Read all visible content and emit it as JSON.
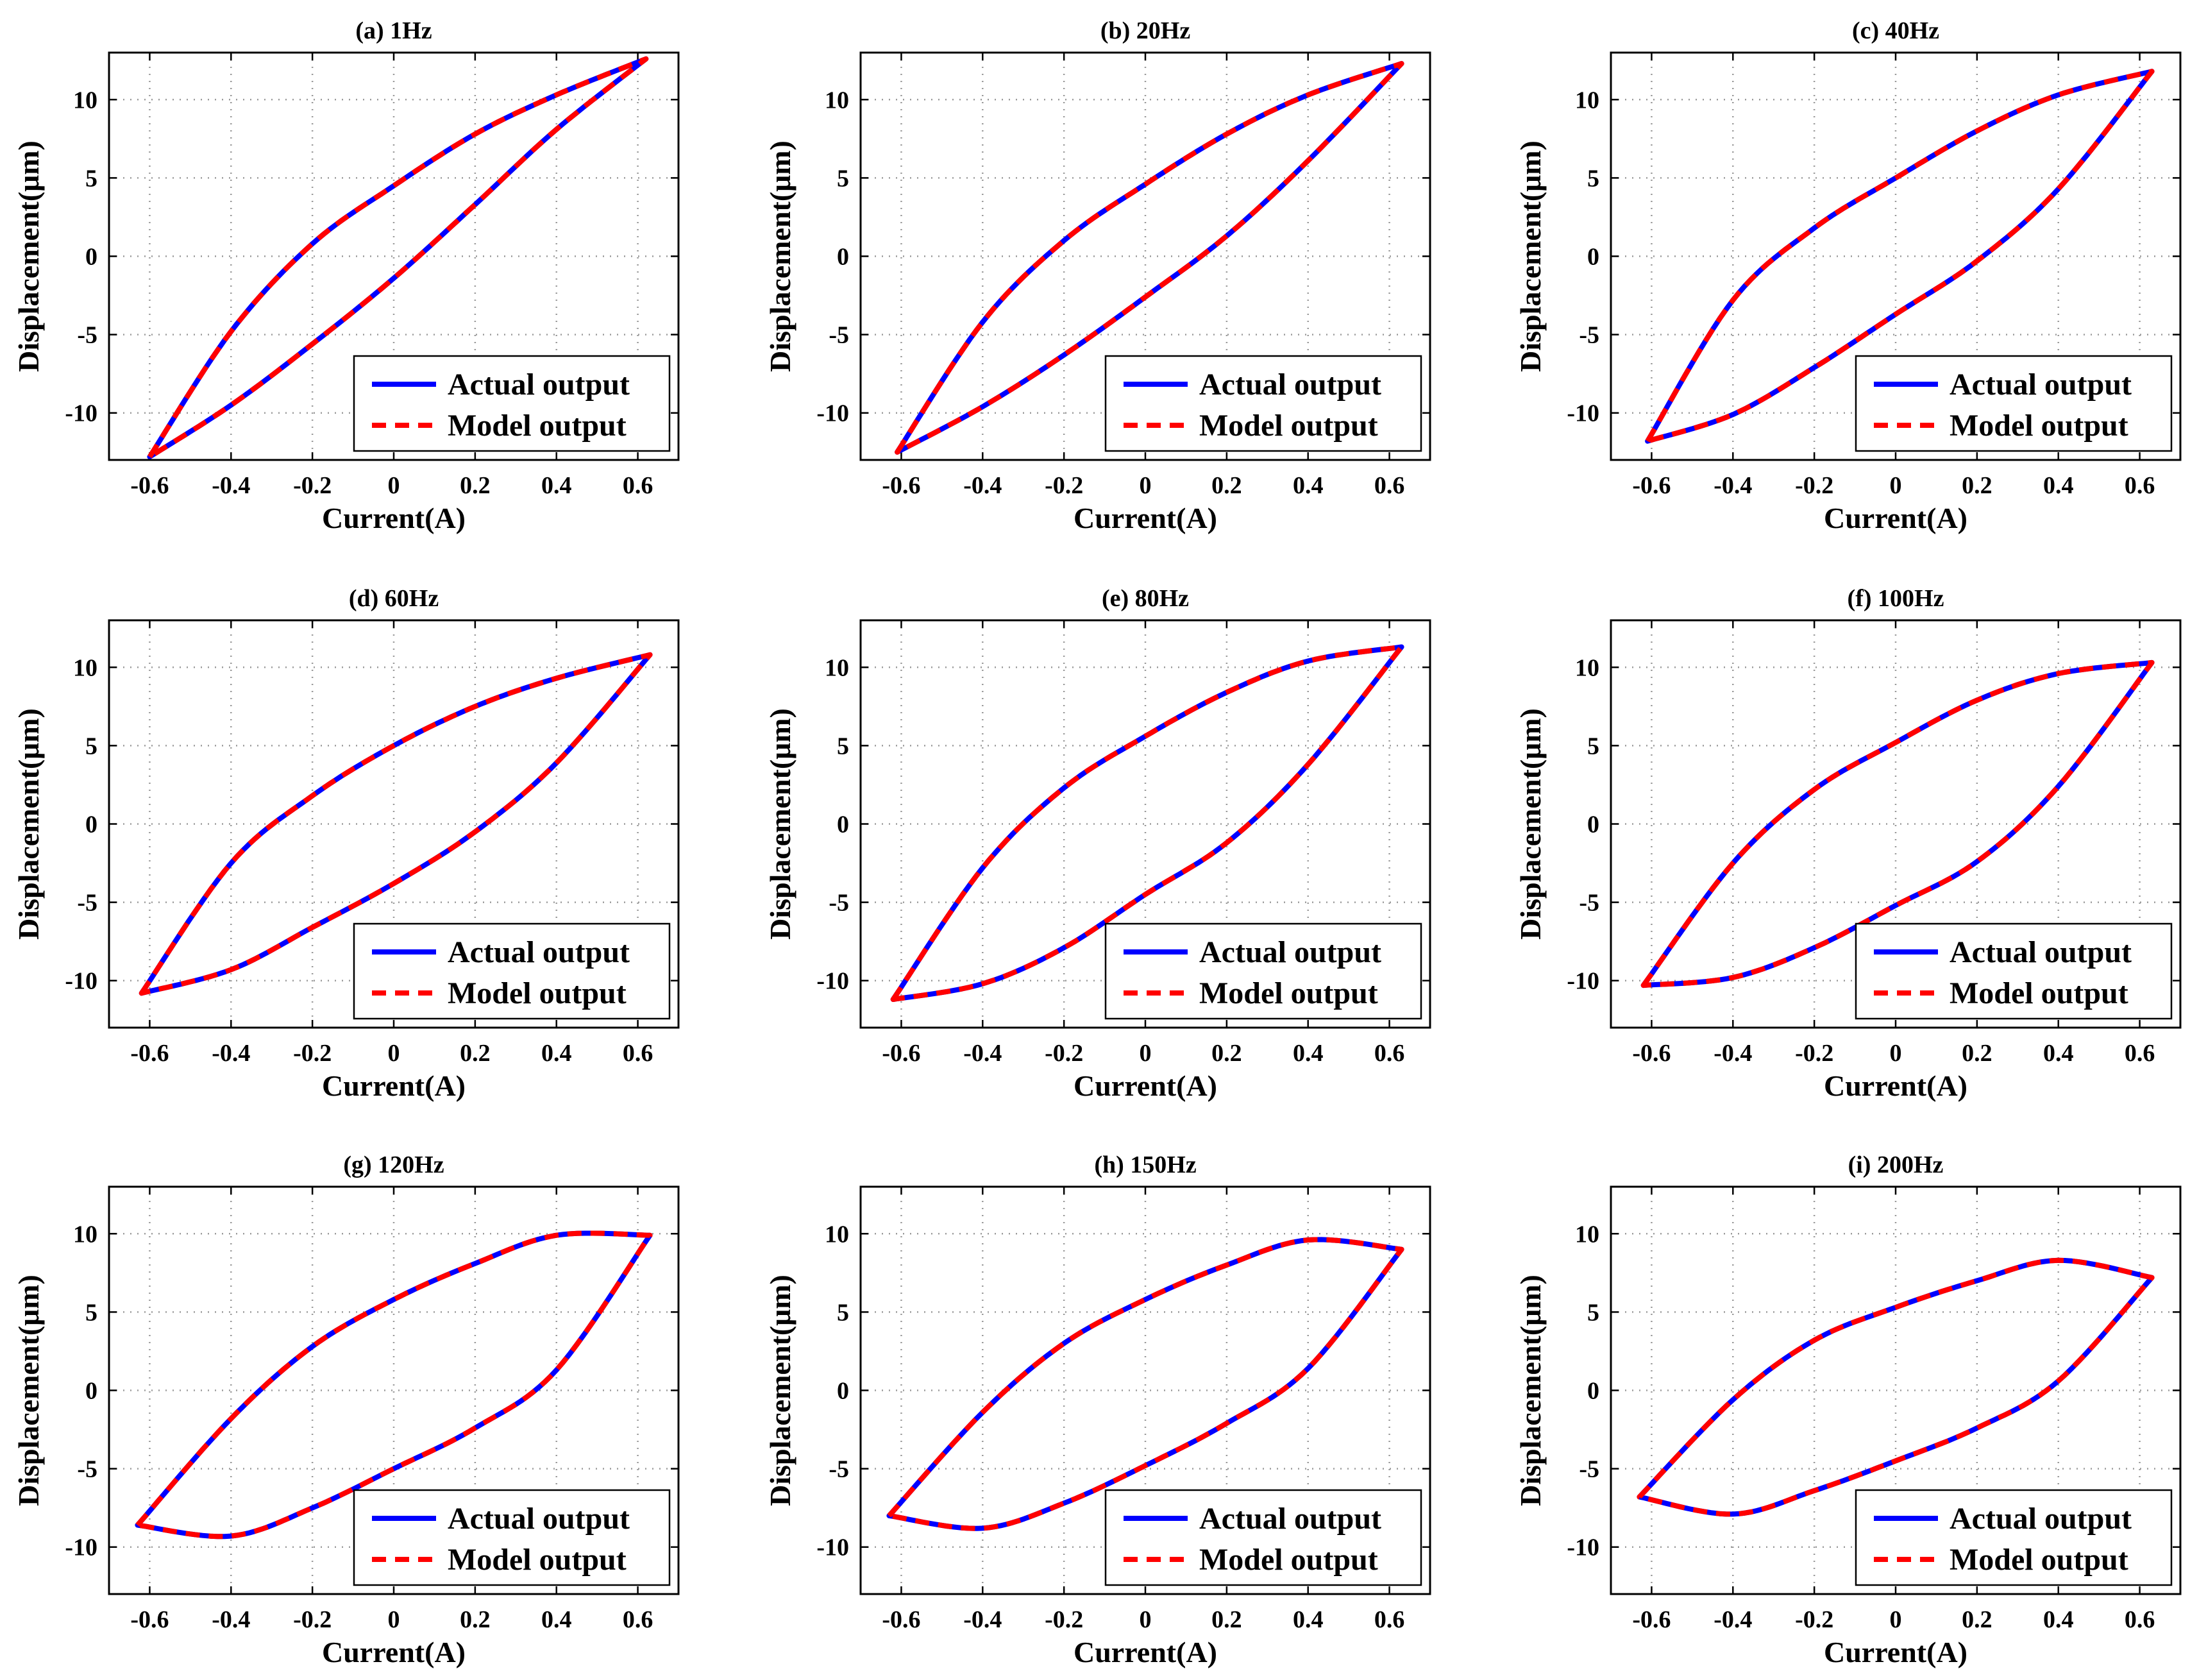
{
  "chart_data": [
    {
      "type": "line",
      "panel": "a",
      "title": "(a) 1Hz",
      "xlabel": "Current(A)",
      "ylabel": "Displacement(μm)",
      "xlim": [
        -0.7,
        0.7
      ],
      "ylim": [
        -13,
        13
      ],
      "xticks": [
        -0.6,
        -0.4,
        -0.2,
        0,
        0.2,
        0.4,
        0.6
      ],
      "xtick_labels": [
        "-0.6",
        "-0.4",
        "-0.2",
        "0",
        "0.2",
        "0.4",
        "0.6"
      ],
      "yticks": [
        -10,
        -5,
        0,
        5,
        10
      ],
      "ytick_labels": [
        "-10",
        "-5",
        "0",
        "5",
        "10"
      ],
      "grid": true,
      "legend_position": "bottom-right",
      "series": [
        {
          "name": "Actual output",
          "color": "#0000ff",
          "style": "solid"
        },
        {
          "name": "Model output",
          "color": "#ff0000",
          "style": "dashed"
        }
      ],
      "loop": {
        "x_min": -0.6,
        "y_at_xmin": -12.8,
        "x_max": 0.62,
        "y_at_xmax": 12.6,
        "upper_branch": [
          [
            -0.6,
            -12.8
          ],
          [
            -0.4,
            -4.8
          ],
          [
            -0.2,
            0.8
          ],
          [
            0,
            4.5
          ],
          [
            0.2,
            7.8
          ],
          [
            0.4,
            10.3
          ],
          [
            0.62,
            12.6
          ]
        ],
        "lower_branch": [
          [
            0.62,
            12.6
          ],
          [
            0.4,
            8.1
          ],
          [
            0.2,
            3.3
          ],
          [
            0,
            -1.4
          ],
          [
            -0.2,
            -5.6
          ],
          [
            -0.4,
            -9.5
          ],
          [
            -0.6,
            -12.8
          ]
        ]
      }
    },
    {
      "type": "line",
      "panel": "b",
      "title": "(b) 20Hz",
      "xlabel": "Current(A)",
      "ylabel": "Displacement(μm)",
      "xlim": [
        -0.7,
        0.7
      ],
      "ylim": [
        -13,
        13
      ],
      "xticks": [
        -0.6,
        -0.4,
        -0.2,
        0,
        0.2,
        0.4,
        0.6
      ],
      "xtick_labels": [
        "-0.6",
        "-0.4",
        "-0.2",
        "0",
        "0.2",
        "0.4",
        "0.6"
      ],
      "yticks": [
        -10,
        -5,
        0,
        5,
        10
      ],
      "ytick_labels": [
        "-10",
        "-5",
        "0",
        "5",
        "10"
      ],
      "grid": true,
      "legend_position": "bottom-right",
      "series": [
        {
          "name": "Actual output",
          "color": "#0000ff",
          "style": "solid"
        },
        {
          "name": "Model output",
          "color": "#ff0000",
          "style": "dashed"
        }
      ],
      "loop": {
        "x_min": -0.61,
        "y_at_xmin": -12.5,
        "x_max": 0.63,
        "y_at_xmax": 12.3,
        "upper_branch": [
          [
            -0.61,
            -12.5
          ],
          [
            -0.4,
            -4.2
          ],
          [
            -0.2,
            1.0
          ],
          [
            0,
            4.6
          ],
          [
            0.2,
            7.8
          ],
          [
            0.4,
            10.3
          ],
          [
            0.63,
            12.3
          ]
        ],
        "lower_branch": [
          [
            0.63,
            12.3
          ],
          [
            0.4,
            6.1
          ],
          [
            0.2,
            1.3
          ],
          [
            0,
            -2.6
          ],
          [
            -0.2,
            -6.3
          ],
          [
            -0.4,
            -9.6
          ],
          [
            -0.61,
            -12.5
          ]
        ]
      }
    },
    {
      "type": "line",
      "panel": "c",
      "title": "(c) 40Hz",
      "xlabel": "Current(A)",
      "ylabel": "Displacement(μm)",
      "xlim": [
        -0.7,
        0.7
      ],
      "ylim": [
        -13,
        13
      ],
      "xticks": [
        -0.6,
        -0.4,
        -0.2,
        0,
        0.2,
        0.4,
        0.6
      ],
      "xtick_labels": [
        "-0.6",
        "-0.4",
        "-0.2",
        "0",
        "0.2",
        "0.4",
        "0.6"
      ],
      "yticks": [
        -10,
        -5,
        0,
        5,
        10
      ],
      "ytick_labels": [
        "-10",
        "-5",
        "0",
        "5",
        "10"
      ],
      "grid": true,
      "legend_position": "bottom-right",
      "series": [
        {
          "name": "Actual output",
          "color": "#0000ff",
          "style": "solid"
        },
        {
          "name": "Model output",
          "color": "#ff0000",
          "style": "dashed"
        }
      ],
      "loop": {
        "x_min": -0.61,
        "y_at_xmin": -11.8,
        "x_max": 0.63,
        "y_at_xmax": 11.8,
        "upper_branch": [
          [
            -0.61,
            -11.8
          ],
          [
            -0.4,
            -2.8
          ],
          [
            -0.2,
            1.8
          ],
          [
            0,
            5.0
          ],
          [
            0.2,
            8.0
          ],
          [
            0.4,
            10.3
          ],
          [
            0.63,
            11.8
          ]
        ],
        "lower_branch": [
          [
            0.63,
            11.8
          ],
          [
            0.4,
            4.3
          ],
          [
            0.2,
            -0.3
          ],
          [
            0,
            -3.7
          ],
          [
            -0.2,
            -7.1
          ],
          [
            -0.4,
            -10.1
          ],
          [
            -0.61,
            -11.8
          ]
        ]
      }
    },
    {
      "type": "line",
      "panel": "d",
      "title": "(d) 60Hz",
      "xlabel": "Current(A)",
      "ylabel": "Displacement(μm)",
      "xlim": [
        -0.7,
        0.7
      ],
      "ylim": [
        -13,
        13
      ],
      "xticks": [
        -0.6,
        -0.4,
        -0.2,
        0,
        0.2,
        0.4,
        0.6
      ],
      "xtick_labels": [
        "-0.6",
        "-0.4",
        "-0.2",
        "0",
        "0.2",
        "0.4",
        "0.6"
      ],
      "yticks": [
        -10,
        -5,
        0,
        5,
        10
      ],
      "ytick_labels": [
        "-10",
        "-5",
        "0",
        "5",
        "10"
      ],
      "grid": true,
      "legend_position": "bottom-right",
      "series": [
        {
          "name": "Actual output",
          "color": "#0000ff",
          "style": "solid"
        },
        {
          "name": "Model output",
          "color": "#ff0000",
          "style": "dashed"
        }
      ],
      "loop": {
        "x_min": -0.62,
        "y_at_xmin": -10.8,
        "x_max": 0.63,
        "y_at_xmax": 10.8,
        "upper_branch": [
          [
            -0.62,
            -10.8
          ],
          [
            -0.4,
            -2.5
          ],
          [
            -0.2,
            1.8
          ],
          [
            0,
            5.0
          ],
          [
            0.2,
            7.5
          ],
          [
            0.4,
            9.3
          ],
          [
            0.63,
            10.8
          ]
        ],
        "lower_branch": [
          [
            0.63,
            10.8
          ],
          [
            0.4,
            3.9
          ],
          [
            0.2,
            -0.5
          ],
          [
            0,
            -3.8
          ],
          [
            -0.2,
            -6.6
          ],
          [
            -0.4,
            -9.3
          ],
          [
            -0.62,
            -10.8
          ]
        ]
      }
    },
    {
      "type": "line",
      "panel": "e",
      "title": "(e) 80Hz",
      "xlabel": "Current(A)",
      "ylabel": "Displacement(μm)",
      "xlim": [
        -0.7,
        0.7
      ],
      "ylim": [
        -13,
        13
      ],
      "xticks": [
        -0.6,
        -0.4,
        -0.2,
        0,
        0.2,
        0.4,
        0.6
      ],
      "xtick_labels": [
        "-0.6",
        "-0.4",
        "-0.2",
        "0",
        "0.2",
        "0.4",
        "0.6"
      ],
      "yticks": [
        -10,
        -5,
        0,
        5,
        10
      ],
      "ytick_labels": [
        "-10",
        "-5",
        "0",
        "5",
        "10"
      ],
      "grid": true,
      "legend_position": "bottom-right",
      "series": [
        {
          "name": "Actual output",
          "color": "#0000ff",
          "style": "solid"
        },
        {
          "name": "Model output",
          "color": "#ff0000",
          "style": "dashed"
        }
      ],
      "loop": {
        "x_min": -0.62,
        "y_at_xmin": -11.2,
        "x_max": 0.63,
        "y_at_xmax": 11.3,
        "upper_branch": [
          [
            -0.62,
            -11.2
          ],
          [
            -0.4,
            -2.8
          ],
          [
            -0.2,
            2.3
          ],
          [
            0,
            5.6
          ],
          [
            0.2,
            8.4
          ],
          [
            0.4,
            10.4
          ],
          [
            0.63,
            11.3
          ]
        ],
        "lower_branch": [
          [
            0.63,
            11.3
          ],
          [
            0.4,
            3.8
          ],
          [
            0.2,
            -1.2
          ],
          [
            0,
            -4.5
          ],
          [
            -0.2,
            -7.9
          ],
          [
            -0.4,
            -10.2
          ],
          [
            -0.62,
            -11.2
          ]
        ]
      }
    },
    {
      "type": "line",
      "panel": "f",
      "title": "(f) 100Hz",
      "xlabel": "Current(A)",
      "ylabel": "Displacement(μm)",
      "xlim": [
        -0.7,
        0.7
      ],
      "ylim": [
        -13,
        13
      ],
      "xticks": [
        -0.6,
        -0.4,
        -0.2,
        0,
        0.2,
        0.4,
        0.6
      ],
      "xtick_labels": [
        "-0.6",
        "-0.4",
        "-0.2",
        "0",
        "0.2",
        "0.4",
        "0.6"
      ],
      "yticks": [
        -10,
        -5,
        0,
        5,
        10
      ],
      "ytick_labels": [
        "-10",
        "-5",
        "0",
        "5",
        "10"
      ],
      "grid": true,
      "legend_position": "bottom-right",
      "series": [
        {
          "name": "Actual output",
          "color": "#0000ff",
          "style": "solid"
        },
        {
          "name": "Model output",
          "color": "#ff0000",
          "style": "dashed"
        }
      ],
      "loop": {
        "x_min": -0.62,
        "y_at_xmin": -10.3,
        "x_max": 0.63,
        "y_at_xmax": 10.3,
        "upper_branch": [
          [
            -0.62,
            -10.3
          ],
          [
            -0.4,
            -2.5
          ],
          [
            -0.2,
            2.2
          ],
          [
            0,
            5.2
          ],
          [
            0.2,
            7.9
          ],
          [
            0.4,
            9.6
          ],
          [
            0.63,
            10.3
          ]
        ],
        "lower_branch": [
          [
            0.63,
            10.3
          ],
          [
            0.4,
            2.4
          ],
          [
            0.2,
            -2.4
          ],
          [
            0,
            -5.2
          ],
          [
            -0.2,
            -7.9
          ],
          [
            -0.4,
            -9.8
          ],
          [
            -0.62,
            -10.3
          ]
        ]
      }
    },
    {
      "type": "line",
      "panel": "g",
      "title": "(g) 120Hz",
      "xlabel": "Current(A)",
      "ylabel": "Displacement(μm)",
      "xlim": [
        -0.7,
        0.7
      ],
      "ylim": [
        -13,
        13
      ],
      "xticks": [
        -0.6,
        -0.4,
        -0.2,
        0,
        0.2,
        0.4,
        0.6
      ],
      "xtick_labels": [
        "-0.6",
        "-0.4",
        "-0.2",
        "0",
        "0.2",
        "0.4",
        "0.6"
      ],
      "yticks": [
        -10,
        -5,
        0,
        5,
        10
      ],
      "ytick_labels": [
        "-10",
        "-5",
        "0",
        "5",
        "10"
      ],
      "grid": true,
      "legend_position": "bottom-right",
      "series": [
        {
          "name": "Actual output",
          "color": "#0000ff",
          "style": "solid"
        },
        {
          "name": "Model output",
          "color": "#ff0000",
          "style": "dashed"
        }
      ],
      "loop": {
        "x_min": -0.63,
        "y_at_xmin": -8.6,
        "x_max": 0.63,
        "y_at_xmax": 9.9,
        "upper_branch": [
          [
            -0.63,
            -8.6
          ],
          [
            -0.4,
            -1.8
          ],
          [
            -0.2,
            2.8
          ],
          [
            0,
            5.8
          ],
          [
            0.2,
            8.1
          ],
          [
            0.4,
            9.9
          ],
          [
            0.63,
            9.9
          ]
        ],
        "lower_branch": [
          [
            0.63,
            9.9
          ],
          [
            0.4,
            1.3
          ],
          [
            0.2,
            -2.4
          ],
          [
            0,
            -5.0
          ],
          [
            -0.2,
            -7.5
          ],
          [
            -0.4,
            -9.3
          ],
          [
            -0.63,
            -8.6
          ]
        ]
      }
    },
    {
      "type": "line",
      "panel": "h",
      "title": "(h) 150Hz",
      "xlabel": "Current(A)",
      "ylabel": "Displacement(μm)",
      "xlim": [
        -0.7,
        0.7
      ],
      "ylim": [
        -13,
        13
      ],
      "xticks": [
        -0.6,
        -0.4,
        -0.2,
        0,
        0.2,
        0.4,
        0.6
      ],
      "xtick_labels": [
        "-0.6",
        "-0.4",
        "-0.2",
        "0",
        "0.2",
        "0.4",
        "0.6"
      ],
      "yticks": [
        -10,
        -5,
        0,
        5,
        10
      ],
      "ytick_labels": [
        "-10",
        "-5",
        "0",
        "5",
        "10"
      ],
      "grid": true,
      "legend_position": "bottom-right",
      "series": [
        {
          "name": "Actual output",
          "color": "#0000ff",
          "style": "solid"
        },
        {
          "name": "Model output",
          "color": "#ff0000",
          "style": "dashed"
        }
      ],
      "loop": {
        "x_min": -0.63,
        "y_at_xmin": -8.0,
        "x_max": 0.63,
        "y_at_xmax": 9.0,
        "upper_branch": [
          [
            -0.63,
            -8.0
          ],
          [
            -0.4,
            -1.4
          ],
          [
            -0.2,
            3.0
          ],
          [
            0,
            5.8
          ],
          [
            0.2,
            8.0
          ],
          [
            0.4,
            9.6
          ],
          [
            0.63,
            9.0
          ]
        ],
        "lower_branch": [
          [
            0.63,
            9.0
          ],
          [
            0.4,
            1.4
          ],
          [
            0.2,
            -2.1
          ],
          [
            0,
            -4.8
          ],
          [
            -0.2,
            -7.2
          ],
          [
            -0.4,
            -8.8
          ],
          [
            -0.63,
            -8.0
          ]
        ]
      }
    },
    {
      "type": "line",
      "panel": "i",
      "title": "(i) 200Hz",
      "xlabel": "Current(A)",
      "ylabel": "Displacement(μm)",
      "xlim": [
        -0.7,
        0.7
      ],
      "ylim": [
        -13,
        13
      ],
      "xticks": [
        -0.6,
        -0.4,
        -0.2,
        0,
        0.2,
        0.4,
        0.6
      ],
      "xtick_labels": [
        "-0.6",
        "-0.4",
        "-0.2",
        "0",
        "0.2",
        "0.4",
        "0.6"
      ],
      "yticks": [
        -10,
        -5,
        0,
        5,
        10
      ],
      "ytick_labels": [
        "-10",
        "-5",
        "0",
        "5",
        "10"
      ],
      "grid": true,
      "legend_position": "bottom-right",
      "series": [
        {
          "name": "Actual output",
          "color": "#0000ff",
          "style": "solid"
        },
        {
          "name": "Model output",
          "color": "#ff0000",
          "style": "dashed"
        }
      ],
      "loop": {
        "x_min": -0.63,
        "y_at_xmin": -6.8,
        "x_max": 0.63,
        "y_at_xmax": 7.2,
        "upper_branch": [
          [
            -0.63,
            -6.8
          ],
          [
            -0.4,
            -0.6
          ],
          [
            -0.2,
            3.2
          ],
          [
            0,
            5.3
          ],
          [
            0.2,
            7.0
          ],
          [
            0.4,
            8.3
          ],
          [
            0.63,
            7.2
          ]
        ],
        "lower_branch": [
          [
            0.63,
            7.2
          ],
          [
            0.4,
            0.6
          ],
          [
            0.2,
            -2.4
          ],
          [
            0,
            -4.5
          ],
          [
            -0.2,
            -6.4
          ],
          [
            -0.4,
            -7.9
          ],
          [
            -0.63,
            -6.8
          ]
        ]
      }
    }
  ]
}
